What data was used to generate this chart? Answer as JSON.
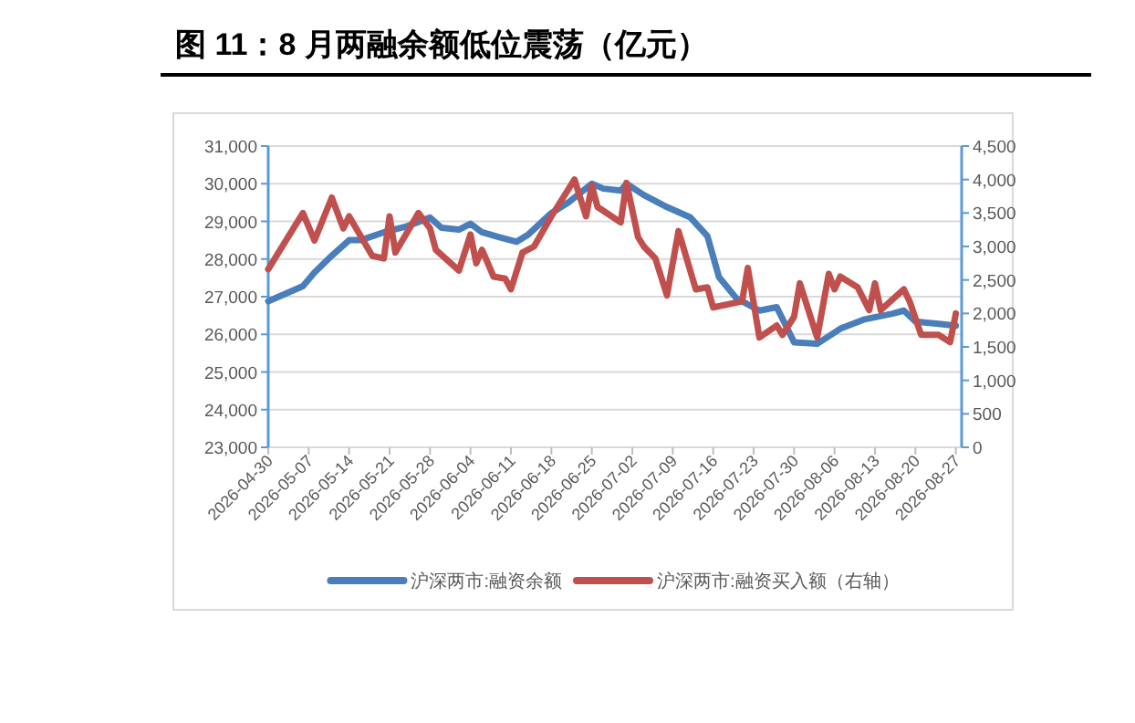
{
  "chart_data": {
    "type": "line",
    "title": "图 11：8 月两融余额低位震荡（亿元）",
    "series": [
      {
        "name": "沪深两市:融资余额",
        "color": "#4a7ebb",
        "x": [
          "2026-04-30",
          "2026-05-06",
          "2026-05-08",
          "2026-05-11",
          "2026-05-14",
          "2026-05-16",
          "2026-05-20",
          "2026-05-24",
          "2026-05-28",
          "2026-05-30",
          "2026-06-02",
          "2026-06-04",
          "2026-06-06",
          "2026-06-09",
          "2026-06-12",
          "2026-06-14",
          "2026-06-18",
          "2026-06-21",
          "2026-06-25",
          "2026-06-27",
          "2026-06-30",
          "2026-07-01",
          "2026-07-04",
          "2026-07-08",
          "2026-07-12",
          "2026-07-15",
          "2026-07-17",
          "2026-07-20",
          "2026-07-24",
          "2026-07-27",
          "2026-07-30",
          "2026-08-03",
          "2026-08-07",
          "2026-08-11",
          "2026-08-16",
          "2026-08-18",
          "2026-08-20",
          "2026-08-24",
          "2026-08-27"
        ],
        "values": [
          26880,
          27280,
          27640,
          28090,
          28500,
          28500,
          28710,
          28870,
          29100,
          28830,
          28780,
          28940,
          28710,
          28580,
          28460,
          28650,
          29220,
          29510,
          30000,
          29870,
          29820,
          30000,
          29700,
          29380,
          29110,
          28610,
          27520,
          26960,
          26630,
          26720,
          25790,
          25750,
          26150,
          26390,
          26550,
          26630,
          26340,
          26280,
          26230
        ]
      },
      {
        "name": "沪深两市:融资买入额（右轴）",
        "color": "#c0504d",
        "axis": "y2",
        "x": [
          "2026-04-30",
          "2026-05-06",
          "2026-05-08",
          "2026-05-11",
          "2026-05-13",
          "2026-05-14",
          "2026-05-18",
          "2026-05-20",
          "2026-05-21",
          "2026-05-22",
          "2026-05-26",
          "2026-05-28",
          "2026-05-29",
          "2026-06-02",
          "2026-06-04",
          "2026-06-05",
          "2026-06-06",
          "2026-06-08",
          "2026-06-10",
          "2026-06-11",
          "2026-06-13",
          "2026-06-15",
          "2026-06-18",
          "2026-06-22",
          "2026-06-24",
          "2026-06-25",
          "2026-06-26",
          "2026-06-30",
          "2026-07-01",
          "2026-07-03",
          "2026-07-04",
          "2026-07-06",
          "2026-07-08",
          "2026-07-10",
          "2026-07-13",
          "2026-07-15",
          "2026-07-16",
          "2026-07-21",
          "2026-07-22",
          "2026-07-24",
          "2026-07-27",
          "2026-07-28",
          "2026-07-30",
          "2026-07-31",
          "2026-08-03",
          "2026-08-05",
          "2026-08-06",
          "2026-08-07",
          "2026-08-10",
          "2026-08-12",
          "2026-08-13",
          "2026-08-14",
          "2026-08-18",
          "2026-08-19",
          "2026-08-21",
          "2026-08-24",
          "2026-08-26",
          "2026-08-27"
        ],
        "values": [
          2660,
          3500,
          3090,
          3730,
          3270,
          3450,
          2860,
          2820,
          3450,
          2910,
          3500,
          3270,
          2950,
          2640,
          3180,
          2750,
          2950,
          2550,
          2520,
          2360,
          2910,
          3000,
          3450,
          4000,
          3450,
          3910,
          3590,
          3360,
          3950,
          3140,
          3000,
          2820,
          2270,
          3230,
          2360,
          2390,
          2090,
          2180,
          2680,
          1640,
          1820,
          1680,
          1950,
          2450,
          1640,
          2590,
          2360,
          2550,
          2390,
          2050,
          2450,
          2050,
          2360,
          2180,
          1680,
          1680,
          1570,
          2000
        ]
      }
    ],
    "xlim": [
      "2026-04-30",
      "2026-08-28"
    ],
    "xticks": [
      "2026-04-30",
      "2026-05-07",
      "2026-05-14",
      "2026-05-21",
      "2026-05-28",
      "2026-06-04",
      "2026-06-11",
      "2026-06-18",
      "2026-06-25",
      "2026-07-02",
      "2026-07-09",
      "2026-07-16",
      "2026-07-23",
      "2026-07-30",
      "2026-08-06",
      "2026-08-13",
      "2026-08-20",
      "2026-08-27"
    ],
    "ylim": [
      23000,
      31000
    ],
    "yticks": [
      {
        "value": 23000,
        "label": "23,000"
      },
      {
        "value": 24000,
        "label": "24,000"
      },
      {
        "value": 25000,
        "label": "25,000"
      },
      {
        "value": 26000,
        "label": "26,000"
      },
      {
        "value": 27000,
        "label": "27,000"
      },
      {
        "value": 28000,
        "label": "28,000"
      },
      {
        "value": 29000,
        "label": "29,000"
      },
      {
        "value": 30000,
        "label": "30,000"
      },
      {
        "value": 31000,
        "label": "31,000"
      }
    ],
    "y2lim": [
      0,
      4500
    ],
    "y2ticks": [
      0,
      500,
      {
        "value": 1000,
        "label": "1,000"
      },
      {
        "value": 1500,
        "label": "1,500"
      },
      {
        "value": 2000,
        "label": "2,000"
      },
      {
        "value": 2500,
        "label": "2,500"
      },
      {
        "value": 3000,
        "label": "3,000"
      },
      {
        "value": 3500,
        "label": "3,500"
      },
      {
        "value": 4000,
        "label": "4,000"
      },
      {
        "value": 4500,
        "label": "4,500"
      }
    ],
    "grid": "y",
    "legend": "bottom"
  }
}
